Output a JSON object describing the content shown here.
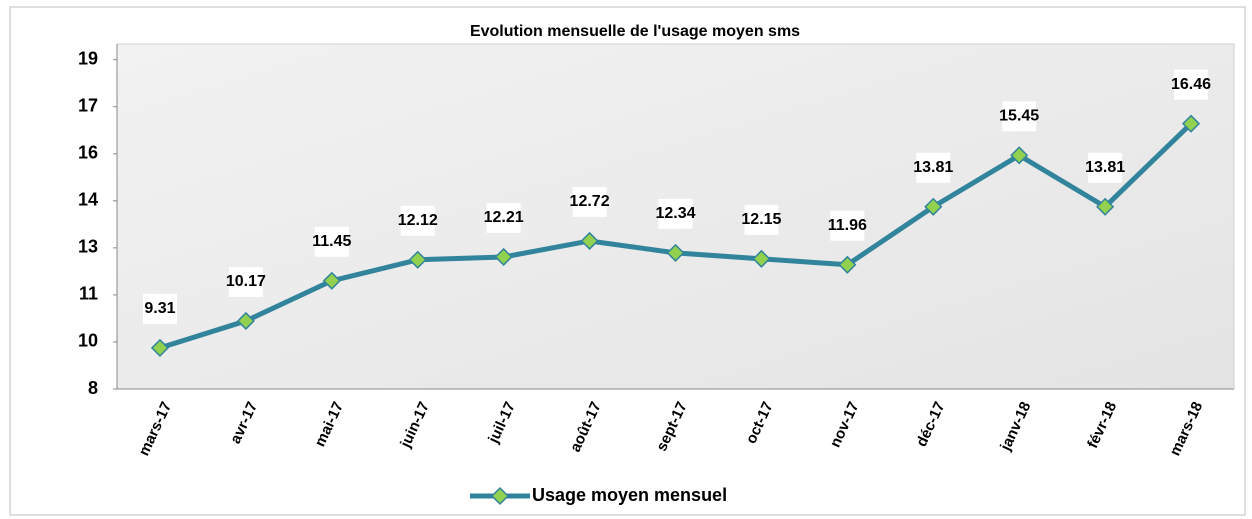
{
  "chart_data": {
    "type": "line",
    "title": "Evolution mensuelle  de l'usage moyen  sms",
    "categories": [
      "mars-17",
      "avr-17",
      "mai-17",
      "juin-17",
      "juil-17",
      "août-17",
      "sept-17",
      "oct-17",
      "nov-17",
      "déc-17",
      "janv-18",
      "févr-18",
      "mars-18"
    ],
    "series": [
      {
        "name": "Usage moyen mensuel",
        "color": "#31849b",
        "marker_color": "#92d050",
        "values": [
          9.31,
          10.17,
          11.45,
          12.12,
          12.21,
          12.72,
          12.34,
          12.15,
          11.96,
          13.81,
          15.45,
          13.81,
          16.46
        ]
      }
    ],
    "ylim": [
      8,
      19
    ],
    "yticks": [
      {
        "value": 8,
        "label": "8"
      },
      {
        "value": 9.5,
        "label": "10"
      },
      {
        "value": 11,
        "label": "11"
      },
      {
        "value": 12.5,
        "label": "13"
      },
      {
        "value": 14,
        "label": "14"
      },
      {
        "value": 15.5,
        "label": "16"
      },
      {
        "value": 17,
        "label": "17"
      },
      {
        "value": 18.5,
        "label": "19"
      }
    ],
    "grid": false,
    "legend": "bottom"
  }
}
